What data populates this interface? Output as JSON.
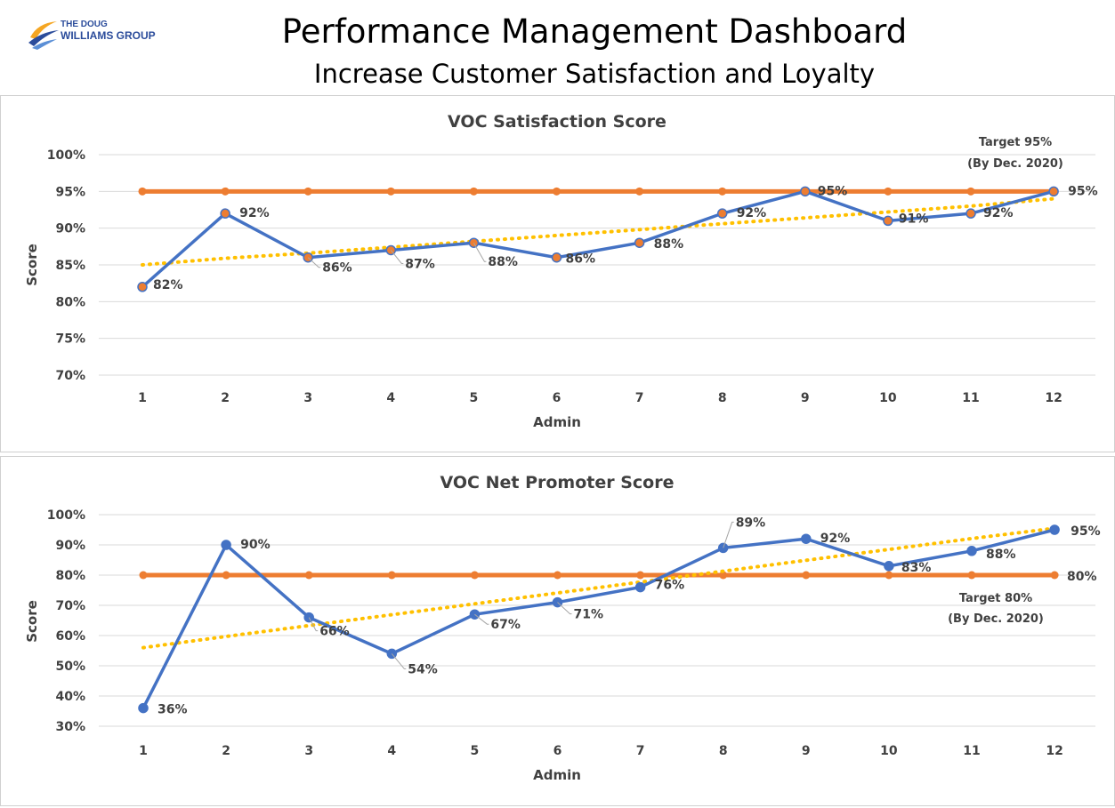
{
  "header": {
    "logo_line1": "THE DOUG",
    "logo_line2": "WILLIAMS GROUP",
    "title": "Performance Management Dashboard",
    "subtitle": "Increase Customer Satisfaction and Loyalty"
  },
  "colors": {
    "actual": "#4472c4",
    "target": "#ed7d31",
    "trend": "#ffc000",
    "grid": "#d9d9d9",
    "text": "#404040"
  },
  "chart_data": [
    {
      "type": "line",
      "title": "VOC Satisfaction Score",
      "xlabel": "Admin",
      "ylabel": "Score",
      "categories": [
        "1",
        "2",
        "3",
        "4",
        "5",
        "6",
        "7",
        "8",
        "9",
        "10",
        "11",
        "12"
      ],
      "y_ticks": [
        "70%",
        "75%",
        "80%",
        "85%",
        "90%",
        "95%",
        "100%"
      ],
      "ylim": [
        70,
        100
      ],
      "grid": true,
      "series": [
        {
          "role": "actual",
          "values": [
            82,
            92,
            86,
            87,
            88,
            86,
            88,
            92,
            95,
            91,
            92,
            95
          ],
          "labels": [
            "82%",
            "92%",
            "86%",
            "87%",
            "88%",
            "86%",
            "88%",
            "92%",
            "95%",
            "91%",
            "92%",
            "95%"
          ],
          "marker_color": "#ed7d31"
        },
        {
          "role": "target",
          "values": [
            95,
            95,
            95,
            95,
            95,
            95,
            95,
            95,
            95,
            95,
            95,
            95
          ]
        },
        {
          "role": "trend",
          "values": [
            85.0,
            85.9,
            86.6,
            87.4,
            88.2,
            89.0,
            89.8,
            90.6,
            91.4,
            92.2,
            93.0,
            94.0
          ]
        }
      ],
      "target_note": [
        "Target 95%",
        "(By Dec. 2020)"
      ]
    },
    {
      "type": "line",
      "title": "VOC Net Promoter Score",
      "xlabel": "Admin",
      "ylabel": "Score",
      "categories": [
        "1",
        "2",
        "3",
        "4",
        "5",
        "6",
        "7",
        "8",
        "9",
        "10",
        "11",
        "12"
      ],
      "y_ticks": [
        "30%",
        "40%",
        "50%",
        "60%",
        "70%",
        "80%",
        "90%",
        "100%"
      ],
      "ylim": [
        30,
        100
      ],
      "grid": true,
      "series": [
        {
          "role": "actual",
          "values": [
            36,
            90,
            66,
            54,
            67,
            71,
            76,
            89,
            92,
            83,
            88,
            95
          ],
          "labels": [
            "36%",
            "90%",
            "66%",
            "54%",
            "67%",
            "71%",
            "76%",
            "89%",
            "92%",
            "83%",
            "88%",
            "95%"
          ],
          "marker_color": "#4472c4"
        },
        {
          "role": "target",
          "values": [
            80,
            80,
            80,
            80,
            80,
            80,
            80,
            80,
            80,
            80,
            80,
            80
          ],
          "end_label": "80%"
        },
        {
          "role": "trend",
          "values": [
            56,
            59.7,
            63.3,
            66.9,
            70.5,
            74.1,
            77.7,
            81.3,
            84.9,
            88.5,
            92.1,
            95.5
          ]
        }
      ],
      "target_note": [
        "Target 80%",
        "(By Dec. 2020)"
      ]
    }
  ]
}
